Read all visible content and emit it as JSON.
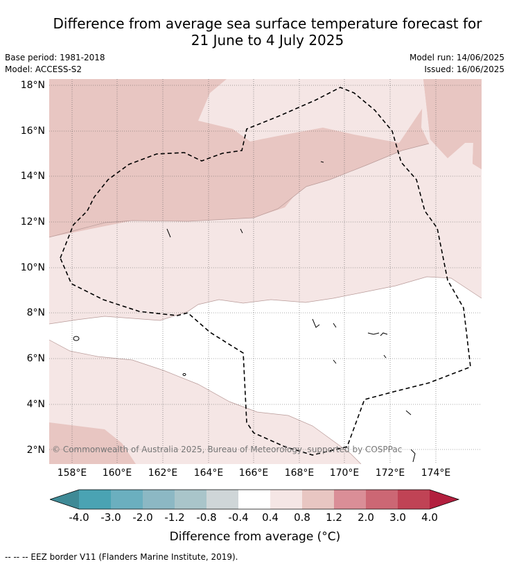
{
  "title_line1": "Difference from average sea surface temperature forecast for",
  "title_line2": "21 June to 4 July 2025",
  "base_period": "Base period: 1981-2018",
  "model": "Model: ACCESS-S2",
  "model_run": "Model run: 14/06/2025",
  "issued": "Issued: 16/06/2025",
  "lat_labels": [
    "18°N",
    "16°N",
    "14°N",
    "12°N",
    "10°N",
    "8°N",
    "6°N",
    "4°N",
    "2°N"
  ],
  "lon_labels": [
    "158°E",
    "160°E",
    "162°E",
    "164°E",
    "166°E",
    "168°E",
    "170°E",
    "172°E",
    "174°E"
  ],
  "copyright": "© Commonwealth of Australia 2025, Bureau of Meteorology, supported by COSPPac",
  "colorbar": {
    "ticks": [
      "-4.0",
      "-3.0",
      "-2.0",
      "-1.2",
      "-0.8",
      "-0.4",
      "0.4",
      "0.8",
      "1.2",
      "2.0",
      "3.0",
      "4.0"
    ],
    "colors": [
      "#3f8a96",
      "#4aa3b3",
      "#6bafbf",
      "#8cb8c4",
      "#a9c5ca",
      "#cfd6d8",
      "#ffffff",
      "#f5e6e5",
      "#e8c6c2",
      "#da8e97",
      "#cc6774",
      "#c04355",
      "#b21f3e"
    ],
    "label": "Difference from average (°C)"
  },
  "map_colors": {
    "band_0_4_to_0_8": "#f5e6e5",
    "band_0_8_to_1_2": "#e8c6c2",
    "neutral": "#ffffff",
    "eez_border": "#000000"
  },
  "footnote": "-- -- -- EEZ border V11 (Flanders Marine Institute, 2019)."
}
